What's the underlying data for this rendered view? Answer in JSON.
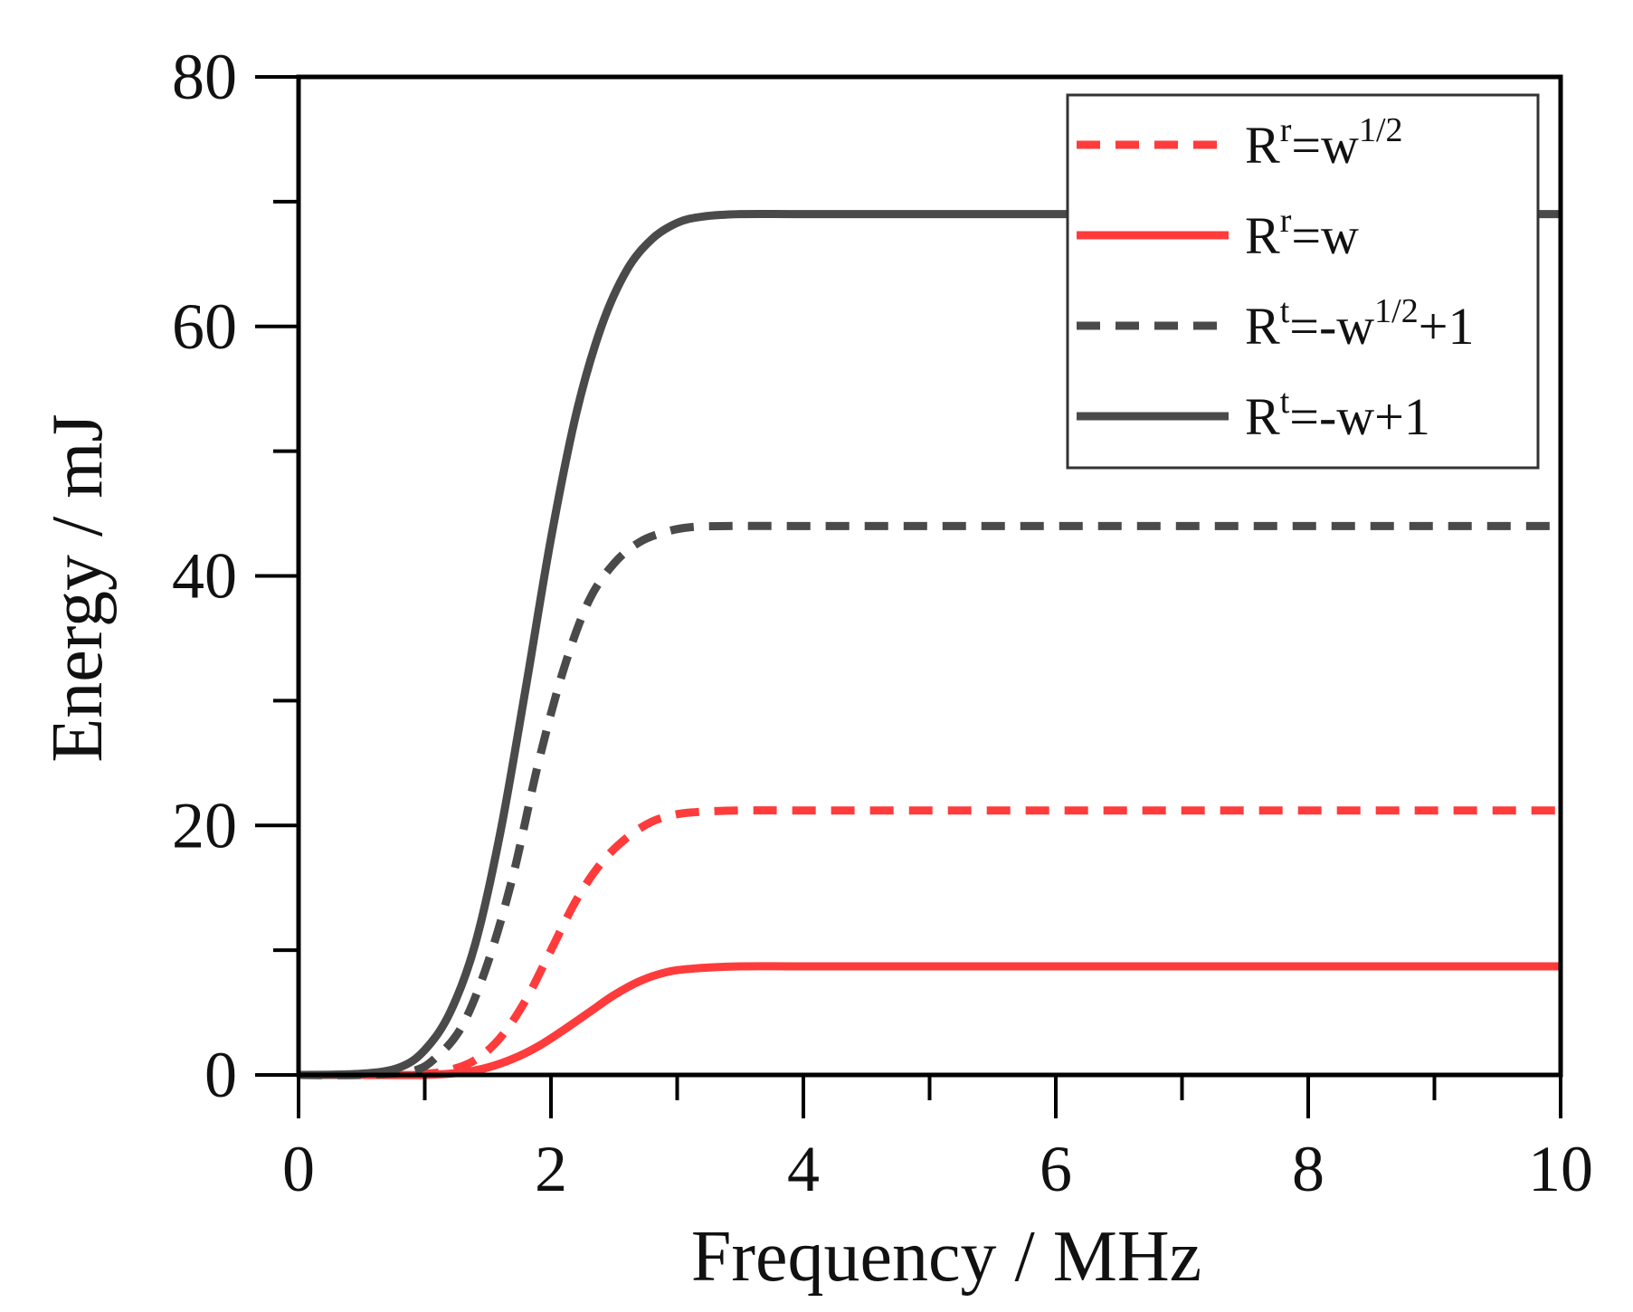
{
  "chart_data": {
    "type": "line",
    "title": "",
    "xlabel": "Frequency / MHz",
    "ylabel": "Energy / mJ",
    "xlim": [
      0,
      10
    ],
    "ylim": [
      0,
      80
    ],
    "x_ticks": [
      0,
      2,
      4,
      6,
      8,
      10
    ],
    "x_minor_ticks": [
      1,
      3,
      5,
      7,
      9
    ],
    "y_ticks": [
      0,
      20,
      40,
      60,
      80
    ],
    "y_minor_ticks": [
      10,
      30,
      50,
      70
    ],
    "legend_position": "top-right",
    "series": [
      {
        "name": "R^r=w^1/2",
        "label_base": "R",
        "label_sup1": "r",
        "label_mid": "=w",
        "label_sup2": "1/2",
        "label_end": "",
        "color": "#ff3b3b",
        "style": "dashed",
        "x": [
          0,
          0.5,
          1.0,
          1.2,
          1.4,
          1.6,
          1.8,
          2.0,
          2.2,
          2.4,
          2.6,
          2.8,
          3.0,
          3.2,
          3.5,
          4,
          5,
          6,
          7,
          8,
          9,
          10
        ],
        "y": [
          0,
          0,
          0.1,
          0.4,
          1.2,
          3.0,
          6.0,
          10.0,
          14.0,
          17.0,
          19.0,
          20.3,
          20.9,
          21.1,
          21.2,
          21.2,
          21.2,
          21.2,
          21.2,
          21.2,
          21.2,
          21.2
        ]
      },
      {
        "name": "R^r=w",
        "label_base": "R",
        "label_sup1": "r",
        "label_mid": "=w",
        "label_sup2": "",
        "label_end": "",
        "color": "#ff3b3b",
        "style": "solid",
        "x": [
          0,
          0.5,
          1.0,
          1.3,
          1.5,
          1.7,
          1.9,
          2.1,
          2.3,
          2.5,
          2.7,
          2.9,
          3.1,
          3.5,
          4,
          5,
          6,
          7,
          8,
          9,
          10
        ],
        "y": [
          0,
          0,
          0,
          0.2,
          0.6,
          1.3,
          2.3,
          3.6,
          5.0,
          6.4,
          7.5,
          8.2,
          8.5,
          8.7,
          8.7,
          8.7,
          8.7,
          8.7,
          8.7,
          8.7,
          8.7
        ]
      },
      {
        "name": "R^t=-w^1/2+1",
        "label_base": "R",
        "label_sup1": "t",
        "label_mid": "=-w",
        "label_sup2": "1/2",
        "label_end": "+1",
        "color": "#4a4a4a",
        "style": "dashed",
        "x": [
          0,
          0.5,
          0.9,
          1.1,
          1.3,
          1.5,
          1.7,
          1.9,
          2.1,
          2.3,
          2.5,
          2.7,
          2.9,
          3.1,
          3.4,
          4,
          5,
          6,
          7,
          8,
          9,
          10
        ],
        "y": [
          0,
          0,
          0.3,
          1.5,
          4.0,
          9.0,
          16.0,
          25.0,
          32.5,
          38.0,
          41.0,
          42.7,
          43.5,
          43.9,
          44.0,
          44.0,
          44.0,
          44.0,
          44.0,
          44.0,
          44.0,
          44.0
        ]
      },
      {
        "name": "R^t=-w+1",
        "label_base": "R",
        "label_sup1": "t",
        "label_mid": "=-w",
        "label_sup2": "",
        "label_end": "+1",
        "color": "#4a4a4a",
        "style": "solid",
        "x": [
          0,
          0.5,
          0.8,
          1.0,
          1.2,
          1.4,
          1.6,
          1.8,
          2.0,
          2.2,
          2.4,
          2.6,
          2.8,
          3.0,
          3.2,
          3.5,
          4,
          5,
          6,
          7,
          8,
          9,
          10
        ],
        "y": [
          0,
          0.1,
          0.6,
          2.0,
          5.0,
          10.5,
          19.5,
          31.0,
          43.0,
          53.0,
          60.0,
          64.5,
          67.0,
          68.3,
          68.8,
          69.0,
          69.0,
          69.0,
          69.0,
          69.0,
          69.0,
          69.0,
          69.0
        ]
      }
    ]
  }
}
